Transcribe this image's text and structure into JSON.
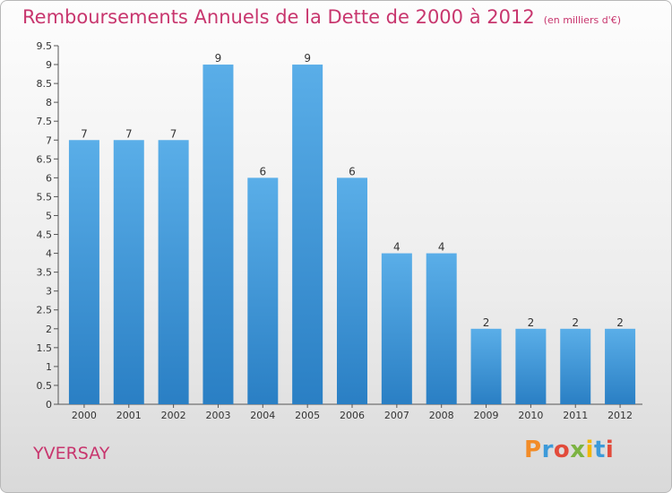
{
  "header": {
    "title": "Remboursements Annuels de la Dette de 2000 à 2012",
    "unit": "(en milliers d'€)"
  },
  "footer": {
    "commune": "YVERSAY",
    "brand": [
      "P",
      "r",
      "o",
      "x",
      "i",
      "t",
      "i"
    ]
  },
  "chart_data": {
    "type": "bar",
    "title": "Remboursements Annuels de la Dette de 2000 à 2012",
    "subtitle": "(en milliers d'€)",
    "xlabel": "",
    "ylabel": "",
    "categories": [
      "2000",
      "2001",
      "2002",
      "2003",
      "2004",
      "2005",
      "2006",
      "2007",
      "2008",
      "2009",
      "2010",
      "2011",
      "2012"
    ],
    "values": [
      7,
      7,
      7,
      9,
      6,
      9,
      6,
      4,
      4,
      2,
      2,
      2,
      2
    ],
    "value_labels": [
      "7",
      "7",
      "7",
      "9",
      "6",
      "9",
      "6",
      "4",
      "4",
      "2",
      "2",
      "2",
      "2"
    ],
    "ylim": [
      0,
      9.5
    ],
    "yticks": [
      "0",
      "0.5",
      "1",
      "1.5",
      "2",
      "2.5",
      "3",
      "3.5",
      "4",
      "4.5",
      "5",
      "5.5",
      "6",
      "6.5",
      "7",
      "7.5",
      "8",
      "8.5",
      "9",
      "9.5"
    ],
    "grid": false,
    "legend": "none",
    "bar_color_top": "#5aaee8",
    "bar_color_bottom": "#2a7fc4"
  }
}
